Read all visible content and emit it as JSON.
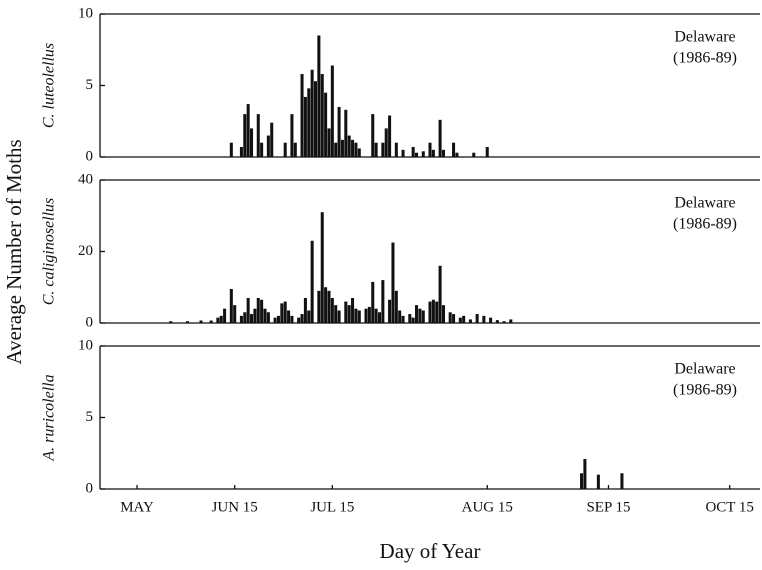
{
  "chart_data": {
    "type": "bar",
    "ylabel": "Average Number of Moths",
    "xlabel": "Day of Year",
    "color": "#111111",
    "xlim": [
      126,
      322
    ],
    "xticks": [
      {
        "value": 137,
        "label": "MAY"
      },
      {
        "value": 166,
        "label": "JUN 15"
      },
      {
        "value": 195,
        "label": "JUL 15"
      },
      {
        "value": 241,
        "label": "AUG 15"
      },
      {
        "value": 277,
        "label": "SEP 15"
      },
      {
        "value": 313,
        "label": "OCT 15"
      }
    ],
    "panels": [
      {
        "label": "C. luteolellus",
        "annotation": [
          "Delaware",
          "(1986-89)"
        ],
        "ylim": [
          0,
          10
        ],
        "yticks": [
          0,
          5,
          10
        ],
        "x": [
          165,
          168,
          169,
          170,
          171,
          173,
          174,
          176,
          177,
          181,
          183,
          184,
          186,
          187,
          188,
          189,
          190,
          191,
          192,
          193,
          194,
          195,
          196,
          197,
          198,
          199,
          200,
          201,
          202,
          203,
          207,
          208,
          210,
          211,
          212,
          214,
          216,
          219,
          220,
          222,
          224,
          225,
          227,
          228,
          231,
          232,
          237,
          241
        ],
        "values": [
          1.0,
          0.7,
          3.0,
          3.7,
          2.0,
          3.0,
          1.0,
          1.5,
          2.4,
          1.0,
          3.0,
          1.0,
          5.8,
          4.2,
          4.8,
          6.1,
          5.3,
          8.5,
          5.8,
          4.5,
          2.0,
          6.4,
          1.0,
          3.5,
          1.2,
          3.3,
          1.5,
          1.2,
          1.0,
          0.6,
          3.0,
          1.0,
          1.0,
          2.0,
          2.9,
          1.0,
          0.5,
          0.7,
          0.3,
          0.4,
          1.0,
          0.5,
          2.6,
          0.5,
          1.0,
          0.3,
          0.3,
          0.7
        ]
      },
      {
        "label": "C. caliginosellus",
        "annotation": [
          "Delaware",
          "(1986-89)"
        ],
        "ylim": [
          0,
          40
        ],
        "yticks": [
          0,
          20,
          40
        ],
        "x": [
          147,
          152,
          156,
          159,
          161,
          162,
          163,
          165,
          166,
          168,
          169,
          170,
          171,
          172,
          173,
          174,
          175,
          176,
          178,
          179,
          180,
          181,
          182,
          183,
          185,
          186,
          187,
          188,
          189,
          191,
          192,
          193,
          194,
          195,
          196,
          197,
          199,
          200,
          201,
          202,
          203,
          205,
          206,
          207,
          208,
          209,
          210,
          212,
          213,
          214,
          215,
          216,
          218,
          219,
          220,
          221,
          222,
          224,
          225,
          226,
          227,
          228,
          230,
          231,
          233,
          234,
          236,
          238,
          240,
          242,
          244,
          246,
          248
        ],
        "values": [
          0.5,
          0.5,
          0.7,
          0.7,
          1.5,
          2.0,
          4.0,
          9.5,
          5.0,
          2.0,
          3.0,
          7.0,
          2.5,
          4.0,
          7.0,
          6.5,
          4.0,
          3.0,
          1.5,
          2.0,
          5.5,
          6.0,
          3.5,
          2.0,
          1.5,
          2.5,
          7.0,
          3.5,
          23.0,
          9.0,
          31.0,
          10.0,
          9.0,
          7.0,
          5.0,
          3.5,
          6.0,
          5.0,
          7.0,
          4.0,
          3.5,
          4.0,
          4.5,
          11.5,
          4.0,
          3.0,
          12.0,
          6.5,
          22.5,
          9.0,
          3.5,
          2.0,
          2.5,
          1.5,
          5.0,
          4.0,
          3.5,
          6.0,
          6.5,
          6.0,
          16.0,
          5.0,
          3.0,
          2.5,
          1.5,
          2.0,
          1.0,
          2.5,
          2.0,
          1.5,
          0.8,
          0.5,
          1.0
        ]
      },
      {
        "label": "A. ruricolella",
        "annotation": [
          "Delaware",
          "(1986-89)"
        ],
        "ylim": [
          0,
          10
        ],
        "yticks": [
          0,
          5,
          10
        ],
        "x": [
          269,
          270,
          274,
          281
        ],
        "values": [
          1.1,
          2.1,
          1.0,
          1.1
        ]
      }
    ]
  }
}
